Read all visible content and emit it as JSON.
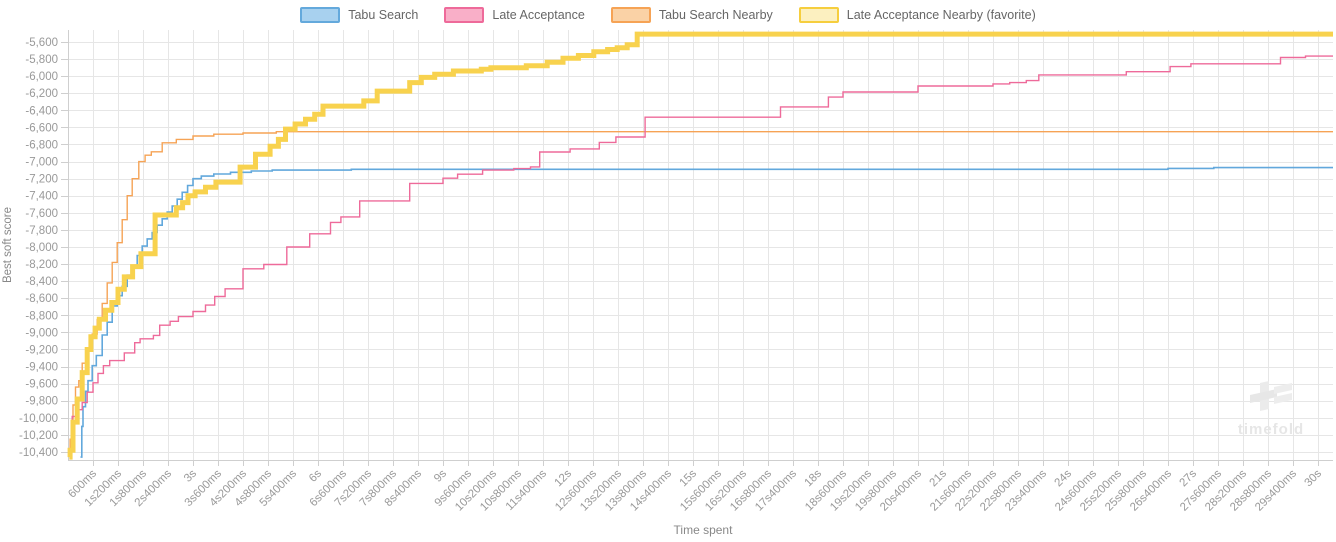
{
  "legend": {
    "items": [
      {
        "id": "tabu-search",
        "label": "Tabu Search",
        "fill": "#a8d1ef",
        "border": "#64a9dc"
      },
      {
        "id": "late-acceptance",
        "label": "Late Acceptance",
        "fill": "#f9afc8",
        "border": "#ee6a9a"
      },
      {
        "id": "tabu-search-nearby",
        "label": "Tabu Search Nearby",
        "fill": "#fad2a6",
        "border": "#f6a355"
      },
      {
        "id": "late-acceptance-nearby",
        "label": "Late Acceptance Nearby (favorite)",
        "fill": "#fcf0c0",
        "border": "#f6ce3e"
      }
    ]
  },
  "watermark": {
    "text": "timefold"
  },
  "chart_data": {
    "type": "line",
    "step": true,
    "title": "",
    "xlabel": "Time spent",
    "ylabel": "Best soft score",
    "grid": true,
    "legend_position": "top",
    "xlim_seconds": [
      0,
      30.36
    ],
    "ylim": [
      -10490,
      -5450
    ],
    "x_tick_times": [
      0.6,
      1.2,
      1.8,
      2.4,
      3.0,
      3.6,
      4.2,
      4.8,
      5.4,
      6.0,
      6.6,
      7.2,
      7.8,
      8.4,
      9.0,
      9.6,
      10.2,
      10.8,
      11.4,
      12.0,
      12.6,
      13.2,
      13.8,
      14.4,
      15.0,
      15.6,
      16.2,
      16.8,
      17.4,
      18.0,
      18.6,
      19.2,
      19.8,
      20.4,
      21.0,
      21.6,
      22.2,
      22.8,
      23.4,
      24.0,
      24.6,
      25.2,
      25.8,
      26.4,
      27.0,
      27.6,
      28.2,
      28.8,
      29.4,
      30.0
    ],
    "x_tick_labels": [
      "600ms",
      "1s200ms",
      "1s800ms",
      "2s400ms",
      "3s",
      "3s600ms",
      "4s200ms",
      "4s800ms",
      "5s400ms",
      "6s",
      "6s600ms",
      "7s200ms",
      "7s800ms",
      "8s400ms",
      "9s",
      "9s600ms",
      "10s200ms",
      "10s800ms",
      "11s400ms",
      "12s",
      "12s600ms",
      "13s200ms",
      "13s800ms",
      "14s400ms",
      "15s",
      "15s600ms",
      "16s200ms",
      "16s800ms",
      "17s400ms",
      "18s",
      "18s600ms",
      "19s200ms",
      "19s800ms",
      "20s400ms",
      "21s",
      "21s600ms",
      "22s200ms",
      "22s800ms",
      "23s400ms",
      "24s",
      "24s600ms",
      "25s200ms",
      "25s800ms",
      "26s400ms",
      "27s",
      "27s600ms",
      "28s200ms",
      "28s800ms",
      "29s400ms",
      "30s"
    ],
    "y_tick_values": [
      -5600,
      -5800,
      -6000,
      -6200,
      -6400,
      -6600,
      -6800,
      -7000,
      -7200,
      -7400,
      -7600,
      -7800,
      -8000,
      -8200,
      -8400,
      -8600,
      -8800,
      -9000,
      -9200,
      -9400,
      -9600,
      -9800,
      -10000,
      -10200,
      -10400
    ],
    "y_tick_labels": [
      "-5,600",
      "-5,800",
      "-6,000",
      "-6,200",
      "-6,400",
      "-6,600",
      "-6,800",
      "-7,000",
      "-7,200",
      "-7,400",
      "-7,600",
      "-7,800",
      "-8,000",
      "-8,200",
      "-8,400",
      "-8,600",
      "-8,800",
      "-9,000",
      "-9,200",
      "-9,400",
      "-9,600",
      "-9,800",
      "-10,000",
      "-10,200",
      "-10,400"
    ],
    "series": [
      {
        "name": "Tabu Search",
        "color": "#62a8dc",
        "line_width": 1.6,
        "points": [
          [
            0.3,
            -10460
          ],
          [
            0.33,
            -10100
          ],
          [
            0.36,
            -9870
          ],
          [
            0.42,
            -9690
          ],
          [
            0.48,
            -9565
          ],
          [
            0.58,
            -9390
          ],
          [
            0.68,
            -9270
          ],
          [
            0.82,
            -9030
          ],
          [
            0.94,
            -8880
          ],
          [
            1.06,
            -8690
          ],
          [
            1.18,
            -8570
          ],
          [
            1.3,
            -8460
          ],
          [
            1.42,
            -8330
          ],
          [
            1.54,
            -8220
          ],
          [
            1.66,
            -8100
          ],
          [
            1.78,
            -7990
          ],
          [
            1.9,
            -7905
          ],
          [
            2.02,
            -7830
          ],
          [
            2.14,
            -7745
          ],
          [
            2.26,
            -7670
          ],
          [
            2.38,
            -7590
          ],
          [
            2.5,
            -7520
          ],
          [
            2.62,
            -7440
          ],
          [
            2.74,
            -7360
          ],
          [
            2.87,
            -7280
          ],
          [
            3.0,
            -7200
          ],
          [
            3.2,
            -7170
          ],
          [
            3.5,
            -7145
          ],
          [
            3.9,
            -7125
          ],
          [
            4.4,
            -7110
          ],
          [
            4.9,
            -7100
          ],
          [
            6.8,
            -7090
          ],
          [
            26.4,
            -7080
          ],
          [
            27.5,
            -7070
          ]
        ]
      },
      {
        "name": "Late Acceptance",
        "color": "#ee6a9a",
        "line_width": 1.4,
        "points": [
          [
            0.05,
            -10390
          ],
          [
            0.1,
            -9985
          ],
          [
            0.22,
            -9905
          ],
          [
            0.34,
            -9820
          ],
          [
            0.46,
            -9700
          ],
          [
            0.6,
            -9590
          ],
          [
            0.72,
            -9480
          ],
          [
            0.85,
            -9390
          ],
          [
            1.0,
            -9330
          ],
          [
            1.35,
            -9240
          ],
          [
            1.6,
            -9120
          ],
          [
            1.73,
            -9075
          ],
          [
            2.05,
            -9035
          ],
          [
            2.2,
            -8915
          ],
          [
            2.45,
            -8870
          ],
          [
            2.65,
            -8815
          ],
          [
            3.0,
            -8755
          ],
          [
            3.3,
            -8680
          ],
          [
            3.52,
            -8580
          ],
          [
            3.77,
            -8490
          ],
          [
            4.2,
            -8255
          ],
          [
            4.7,
            -8205
          ],
          [
            5.25,
            -8000
          ],
          [
            5.8,
            -7845
          ],
          [
            6.3,
            -7712
          ],
          [
            6.55,
            -7648
          ],
          [
            7.0,
            -7460
          ],
          [
            8.2,
            -7255
          ],
          [
            9.0,
            -7195
          ],
          [
            9.35,
            -7148
          ],
          [
            9.95,
            -7100
          ],
          [
            10.7,
            -7082
          ],
          [
            11.1,
            -7062
          ],
          [
            11.32,
            -6888
          ],
          [
            12.05,
            -6852
          ],
          [
            12.75,
            -6775
          ],
          [
            13.15,
            -6712
          ],
          [
            13.85,
            -6480
          ],
          [
            17.1,
            -6360
          ],
          [
            18.25,
            -6245
          ],
          [
            18.6,
            -6185
          ],
          [
            20.4,
            -6115
          ],
          [
            22.2,
            -6090
          ],
          [
            22.6,
            -6075
          ],
          [
            23.0,
            -6052
          ],
          [
            23.3,
            -5985
          ],
          [
            25.4,
            -5948
          ],
          [
            26.45,
            -5888
          ],
          [
            26.95,
            -5855
          ],
          [
            29.1,
            -5782
          ],
          [
            29.7,
            -5765
          ]
        ]
      },
      {
        "name": "Tabu Search Nearby",
        "color": "#f6a355",
        "line_width": 1.4,
        "points": [
          [
            0.02,
            -10390
          ],
          [
            0.05,
            -10250
          ],
          [
            0.08,
            -10050
          ],
          [
            0.12,
            -9850
          ],
          [
            0.18,
            -9640
          ],
          [
            0.26,
            -9565
          ],
          [
            0.34,
            -9360
          ],
          [
            0.46,
            -9220
          ],
          [
            0.58,
            -9020
          ],
          [
            0.7,
            -8850
          ],
          [
            0.82,
            -8660
          ],
          [
            0.94,
            -8420
          ],
          [
            1.06,
            -8180
          ],
          [
            1.18,
            -7950
          ],
          [
            1.3,
            -7680
          ],
          [
            1.42,
            -7400
          ],
          [
            1.54,
            -7200
          ],
          [
            1.7,
            -7000
          ],
          [
            1.85,
            -6925
          ],
          [
            2.0,
            -6885
          ],
          [
            2.26,
            -6780
          ],
          [
            2.6,
            -6740
          ],
          [
            3.0,
            -6700
          ],
          [
            3.5,
            -6680
          ],
          [
            4.2,
            -6665
          ],
          [
            5.0,
            -6650
          ]
        ]
      },
      {
        "name": "Late Acceptance Nearby (favorite)",
        "color": "#f8d24e",
        "line_width": 5,
        "points": [
          [
            0.03,
            -10460
          ],
          [
            0.05,
            -10380
          ],
          [
            0.12,
            -10050
          ],
          [
            0.22,
            -9780
          ],
          [
            0.34,
            -9470
          ],
          [
            0.46,
            -9200
          ],
          [
            0.55,
            -9050
          ],
          [
            0.65,
            -8950
          ],
          [
            0.75,
            -8845
          ],
          [
            0.9,
            -8740
          ],
          [
            1.05,
            -8650
          ],
          [
            1.2,
            -8495
          ],
          [
            1.35,
            -8350
          ],
          [
            1.55,
            -8230
          ],
          [
            1.75,
            -8080
          ],
          [
            2.09,
            -7625
          ],
          [
            2.6,
            -7540
          ],
          [
            2.75,
            -7480
          ],
          [
            2.88,
            -7400
          ],
          [
            3.05,
            -7355
          ],
          [
            3.3,
            -7300
          ],
          [
            3.55,
            -7240
          ],
          [
            4.13,
            -7065
          ],
          [
            4.5,
            -6915
          ],
          [
            4.85,
            -6820
          ],
          [
            5.05,
            -6740
          ],
          [
            5.22,
            -6620
          ],
          [
            5.45,
            -6560
          ],
          [
            5.7,
            -6505
          ],
          [
            5.92,
            -6445
          ],
          [
            6.12,
            -6350
          ],
          [
            7.1,
            -6290
          ],
          [
            7.42,
            -6175
          ],
          [
            8.2,
            -6075
          ],
          [
            8.48,
            -6015
          ],
          [
            8.8,
            -5978
          ],
          [
            9.25,
            -5940
          ],
          [
            9.92,
            -5918
          ],
          [
            10.15,
            -5902
          ],
          [
            11.0,
            -5878
          ],
          [
            11.5,
            -5838
          ],
          [
            11.88,
            -5790
          ],
          [
            12.25,
            -5758
          ],
          [
            12.62,
            -5715
          ],
          [
            12.95,
            -5688
          ],
          [
            13.18,
            -5668
          ],
          [
            13.42,
            -5632
          ],
          [
            13.66,
            -5508
          ]
        ]
      }
    ]
  }
}
